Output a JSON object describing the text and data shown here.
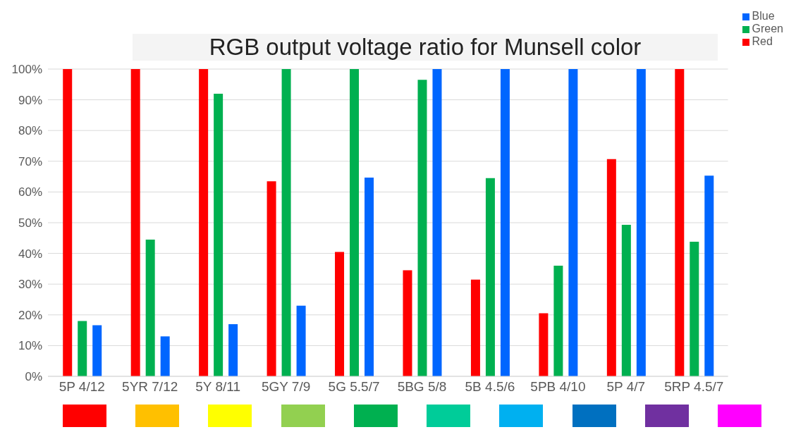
{
  "chart_data": {
    "type": "bar",
    "title": "RGB output voltage ratio for Munsell color",
    "categories": [
      "5P 4/12",
      "5YR 7/12",
      "5Y 8/11",
      "5GY 7/9",
      "5G 5.5/7",
      "5BG 5/8",
      "5B 4.5/6",
      "5PB 4/10",
      "5P 4/7",
      "5RP 4.5/7"
    ],
    "series": [
      {
        "name": "Red",
        "color": "#ff0000",
        "values": [
          100,
          100,
          100,
          63.5,
          40.5,
          34.5,
          31.5,
          20.5,
          70.7,
          100
        ]
      },
      {
        "name": "Green",
        "color": "#00b050",
        "values": [
          18,
          44.5,
          92,
          100,
          100,
          96.5,
          64.5,
          36,
          49.3,
          43.8
        ]
      },
      {
        "name": "Blue",
        "color": "#0066ff",
        "values": [
          16.6,
          13,
          17,
          23,
          64.7,
          100,
          100,
          100,
          100,
          65.3
        ]
      }
    ],
    "ylim": [
      0,
      100
    ],
    "yticks": [
      {
        "value": 0,
        "label": "0%"
      },
      {
        "value": 10,
        "label": "10%"
      },
      {
        "value": 20,
        "label": "20%"
      },
      {
        "value": 30,
        "label": "30%"
      },
      {
        "value": 40,
        "label": "40%"
      },
      {
        "value": 50,
        "label": "50%"
      },
      {
        "value": 60,
        "label": "60%"
      },
      {
        "value": 70,
        "label": "70%"
      },
      {
        "value": 80,
        "label": "80%"
      },
      {
        "value": 90,
        "label": "90%"
      },
      {
        "value": 100,
        "label": "100%"
      }
    ],
    "grid": "y",
    "legend": "top right"
  }
}
